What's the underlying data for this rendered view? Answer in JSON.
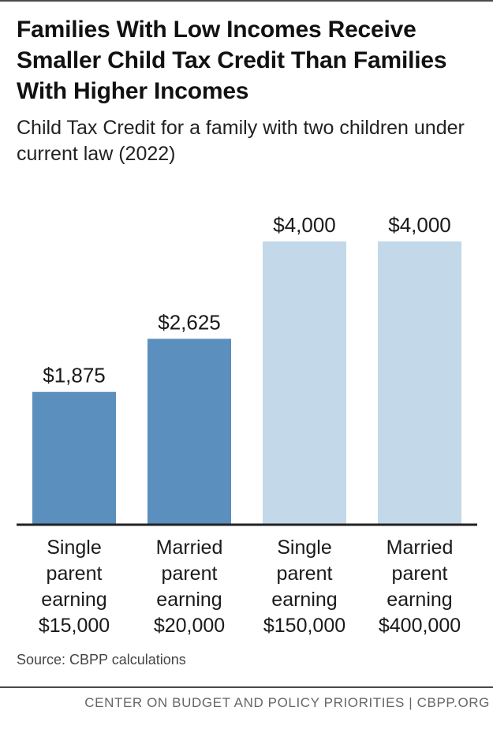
{
  "title": "Families With Low Incomes Receive Smaller Child Tax Credit Than Families With Higher Incomes",
  "subtitle": "Child Tax Credit for a family with two children under current law (2022)",
  "source": "Source: CBPP calculations",
  "footer": "CENTER ON BUDGET AND POLICY PRIORITIES | CBPP.ORG",
  "colors": {
    "dark_bar": "#5b8fbe",
    "light_bar": "#c3d8e9",
    "axis": "#222222"
  },
  "chart_data": {
    "type": "bar",
    "categories": [
      [
        "Single",
        "parent",
        "earning",
        "$15,000"
      ],
      [
        "Married",
        "parent",
        "earning",
        "$20,000"
      ],
      [
        "Single",
        "parent",
        "earning",
        "$150,000"
      ],
      [
        "Married",
        "parent",
        "earning",
        "$400,000"
      ]
    ],
    "values": [
      1875,
      2625,
      4000,
      4000
    ],
    "value_labels": [
      "$1,875",
      "$2,625",
      "$4,000",
      "$4,000"
    ],
    "bar_colors": [
      "#5b8fbe",
      "#5b8fbe",
      "#c3d8e9",
      "#c3d8e9"
    ],
    "title": "",
    "xlabel": "",
    "ylabel": "",
    "ylim": [
      0,
      4000
    ],
    "grid": false,
    "legend": "none"
  }
}
